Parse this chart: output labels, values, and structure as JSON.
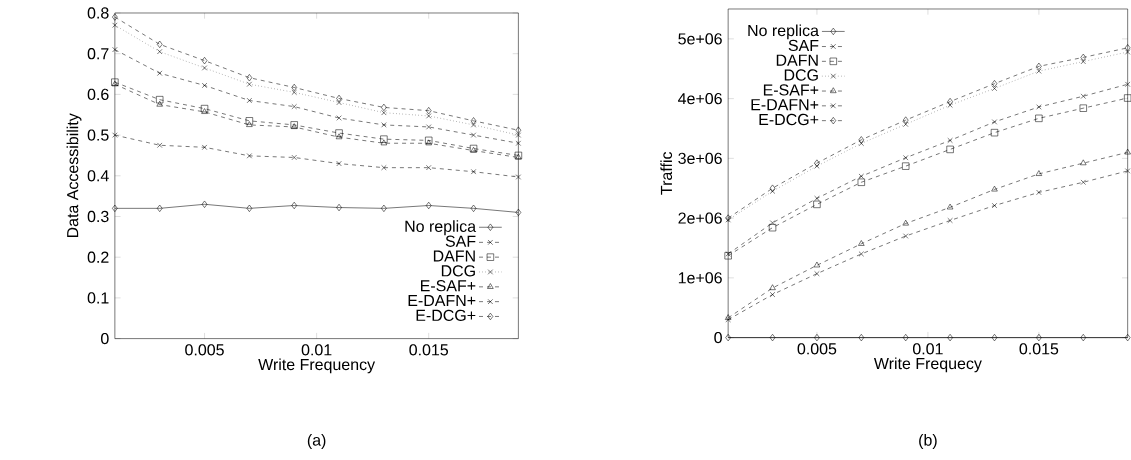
{
  "chart_data": [
    {
      "type": "line",
      "xlabel": "Write Frequency",
      "ylabel": "Data Accessibility",
      "annotations": [
        "(a)"
      ],
      "x": [
        0.001,
        0.003,
        0.005,
        0.007,
        0.009,
        0.011,
        0.013,
        0.015,
        0.017,
        0.019
      ],
      "xlim": [
        0.001,
        0.019
      ],
      "xticks": [
        0.005,
        0.01,
        0.015
      ],
      "ylim": [
        0,
        0.8
      ],
      "yticks": [
        0,
        0.1,
        0.2,
        0.3,
        0.4,
        0.5,
        0.6,
        0.7,
        0.8
      ],
      "legend": "bottom right",
      "grid": false,
      "series": [
        {
          "name": "No replica",
          "color": "#000000",
          "marker": "diamond",
          "line_style": "solid",
          "values": [
            0.32,
            0.32,
            0.33,
            0.32,
            0.327,
            0.322,
            0.32,
            0.327,
            0.32,
            0.31
          ]
        },
        {
          "name": "SAF",
          "color": "#000000",
          "marker": "cross",
          "line_style": "dashed",
          "values": [
            0.5,
            0.475,
            0.47,
            0.449,
            0.445,
            0.43,
            0.42,
            0.42,
            0.41,
            0.397
          ]
        },
        {
          "name": "DAFN",
          "color": "#000000",
          "marker": "square",
          "line_style": "dashed",
          "values": [
            0.63,
            0.587,
            0.565,
            0.535,
            0.525,
            0.505,
            0.49,
            0.487,
            0.467,
            0.45
          ]
        },
        {
          "name": "DCG",
          "color": "#000000",
          "marker": "cross",
          "line_style": "dotted",
          "values": [
            0.77,
            0.705,
            0.665,
            0.625,
            0.605,
            0.58,
            0.555,
            0.547,
            0.525,
            0.5
          ]
        },
        {
          "name": "E-SAF+",
          "color": "#000000",
          "marker": "triangle",
          "line_style": "dashed",
          "values": [
            0.625,
            0.575,
            0.557,
            0.525,
            0.52,
            0.495,
            0.48,
            0.48,
            0.462,
            0.445
          ]
        },
        {
          "name": "E-DAFN+",
          "color": "#000000",
          "marker": "cross",
          "line_style": "dashed",
          "values": [
            0.71,
            0.652,
            0.622,
            0.585,
            0.57,
            0.542,
            0.525,
            0.52,
            0.5,
            0.48
          ]
        },
        {
          "name": "E-DCG+",
          "color": "#000000",
          "marker": "diamond",
          "line_style": "dashed",
          "values": [
            0.79,
            0.723,
            0.683,
            0.641,
            0.617,
            0.59,
            0.568,
            0.56,
            0.535,
            0.512
          ]
        }
      ]
    },
    {
      "type": "line",
      "xlabel": "Write Frequecy",
      "ylabel": "Traffic",
      "annotations": [
        "(b)"
      ],
      "x": [
        0.001,
        0.003,
        0.005,
        0.007,
        0.009,
        0.011,
        0.013,
        0.015,
        0.017,
        0.019
      ],
      "xlim": [
        0.001,
        0.019
      ],
      "xticks": [
        0.005,
        0.01,
        0.015
      ],
      "ylim": [
        0,
        5500000
      ],
      "yticks": [
        0,
        {
          "value": 1000000,
          "label": "1e+06"
        },
        {
          "value": 2000000,
          "label": "2e+06"
        },
        {
          "value": 3000000,
          "label": "3e+06"
        },
        {
          "value": 4000000,
          "label": "4e+06"
        },
        {
          "value": 5000000,
          "label": "5e+06"
        }
      ],
      "legend": "top left",
      "grid": false,
      "series": [
        {
          "name": "No replica",
          "color": "#000000",
          "marker": "diamond",
          "line_style": "solid",
          "values": [
            0,
            0,
            0,
            0,
            0,
            0,
            0,
            0,
            0,
            0
          ]
        },
        {
          "name": "SAF",
          "color": "#000000",
          "marker": "cross",
          "line_style": "dashed",
          "values": [
            300000,
            720000,
            1070000,
            1400000,
            1700000,
            1960000,
            2210000,
            2430000,
            2600000,
            2790000
          ]
        },
        {
          "name": "DAFN",
          "color": "#000000",
          "marker": "square",
          "line_style": "dashed",
          "values": [
            1370000,
            1840000,
            2230000,
            2600000,
            2870000,
            3150000,
            3430000,
            3670000,
            3840000,
            4010000
          ]
        },
        {
          "name": "DCG",
          "color": "#000000",
          "marker": "cross",
          "line_style": "dotted",
          "values": [
            1970000,
            2450000,
            2870000,
            3250000,
            3570000,
            3890000,
            4170000,
            4460000,
            4620000,
            4780000
          ]
        },
        {
          "name": "E-SAF+",
          "color": "#000000",
          "marker": "triangle",
          "line_style": "dashed",
          "values": [
            330000,
            830000,
            1210000,
            1570000,
            1910000,
            2180000,
            2480000,
            2740000,
            2920000,
            3100000
          ]
        },
        {
          "name": "E-DAFN+",
          "color": "#000000",
          "marker": "cross",
          "line_style": "dashed",
          "values": [
            1400000,
            1920000,
            2330000,
            2700000,
            3010000,
            3300000,
            3610000,
            3860000,
            4040000,
            4240000
          ]
        },
        {
          "name": "E-DCG+",
          "color": "#000000",
          "marker": "diamond",
          "line_style": "dashed",
          "values": [
            2000000,
            2500000,
            2920000,
            3310000,
            3640000,
            3950000,
            4250000,
            4540000,
            4690000,
            4850000
          ]
        }
      ]
    }
  ]
}
